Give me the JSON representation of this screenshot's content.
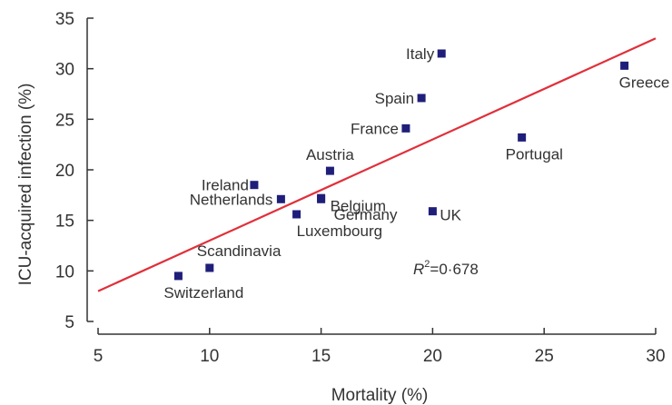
{
  "chart_data": {
    "type": "scatter",
    "xlabel": "Mortality (%)",
    "ylabel": "ICU-acquired infection (%)",
    "xlim": [
      5,
      30
    ],
    "ylim": [
      5,
      35
    ],
    "xticks": [
      5,
      10,
      15,
      20,
      25,
      30
    ],
    "yticks": [
      5,
      10,
      15,
      20,
      25,
      30,
      35
    ],
    "grid": false,
    "point_color": "#1f1f7a",
    "line_color": "#e0303a",
    "points": [
      {
        "label": "Italy",
        "x": 20.4,
        "y": 31.5
      },
      {
        "label": "Greece",
        "x": 28.6,
        "y": 30.3
      },
      {
        "label": "Spain",
        "x": 19.5,
        "y": 27.1
      },
      {
        "label": "France",
        "x": 18.8,
        "y": 24.1
      },
      {
        "label": "Portugal",
        "x": 24.0,
        "y": 23.2
      },
      {
        "label": "Austria",
        "x": 15.4,
        "y": 19.9
      },
      {
        "label": "Ireland",
        "x": 12.0,
        "y": 18.5
      },
      {
        "label": "Germany",
        "x": 15.0,
        "y": 17.2
      },
      {
        "label": "Netherlands",
        "x": 13.2,
        "y": 17.1
      },
      {
        "label": "Belgium",
        "x": 15.0,
        "y": 17.1
      },
      {
        "label": "UK",
        "x": 20.0,
        "y": 15.9
      },
      {
        "label": "Luxembourg",
        "x": 13.9,
        "y": 15.6
      },
      {
        "label": "Scandinavia",
        "x": 10.0,
        "y": 10.3
      },
      {
        "label": "Switzerland",
        "x": 8.6,
        "y": 9.5
      }
    ],
    "trendline": {
      "x": [
        5,
        30
      ],
      "y": [
        8.0,
        33.0
      ]
    },
    "annotation": {
      "r2_symbol": "R",
      "r2_sup": "2",
      "r2_value": "=0·678"
    }
  }
}
